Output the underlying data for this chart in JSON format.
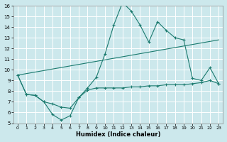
{
  "xlabel": "Humidex (Indice chaleur)",
  "bg_color": "#cce8ec",
  "line_color": "#1a7a6e",
  "grid_color": "#ffffff",
  "x_min": -0.5,
  "x_max": 23.5,
  "y_min": 5,
  "y_max": 16,
  "line1_x": [
    0,
    1,
    2,
    3,
    4,
    5,
    6,
    7,
    8,
    9,
    10,
    11,
    12,
    13,
    14,
    15,
    16,
    17,
    18,
    19,
    20,
    21,
    22,
    23
  ],
  "line1_y": [
    9.5,
    7.7,
    7.6,
    7.0,
    5.8,
    5.3,
    5.7,
    7.4,
    8.3,
    9.3,
    11.5,
    14.2,
    16.3,
    15.5,
    14.2,
    12.6,
    14.5,
    13.7,
    13.0,
    12.8,
    9.2,
    9.0,
    10.2,
    8.7
  ],
  "line2_x": [
    0,
    23
  ],
  "line2_y": [
    9.5,
    12.8
  ],
  "line3_x": [
    0,
    1,
    2,
    3,
    4,
    5,
    6,
    7,
    8,
    9,
    10,
    11,
    12,
    13,
    14,
    15,
    16,
    17,
    18,
    19,
    20,
    21,
    22,
    23
  ],
  "line3_y": [
    9.5,
    7.7,
    7.6,
    7.0,
    6.8,
    6.5,
    6.4,
    7.4,
    8.1,
    8.3,
    8.3,
    8.3,
    8.3,
    8.4,
    8.4,
    8.5,
    8.5,
    8.6,
    8.6,
    8.6,
    8.7,
    8.8,
    9.0,
    8.7
  ]
}
